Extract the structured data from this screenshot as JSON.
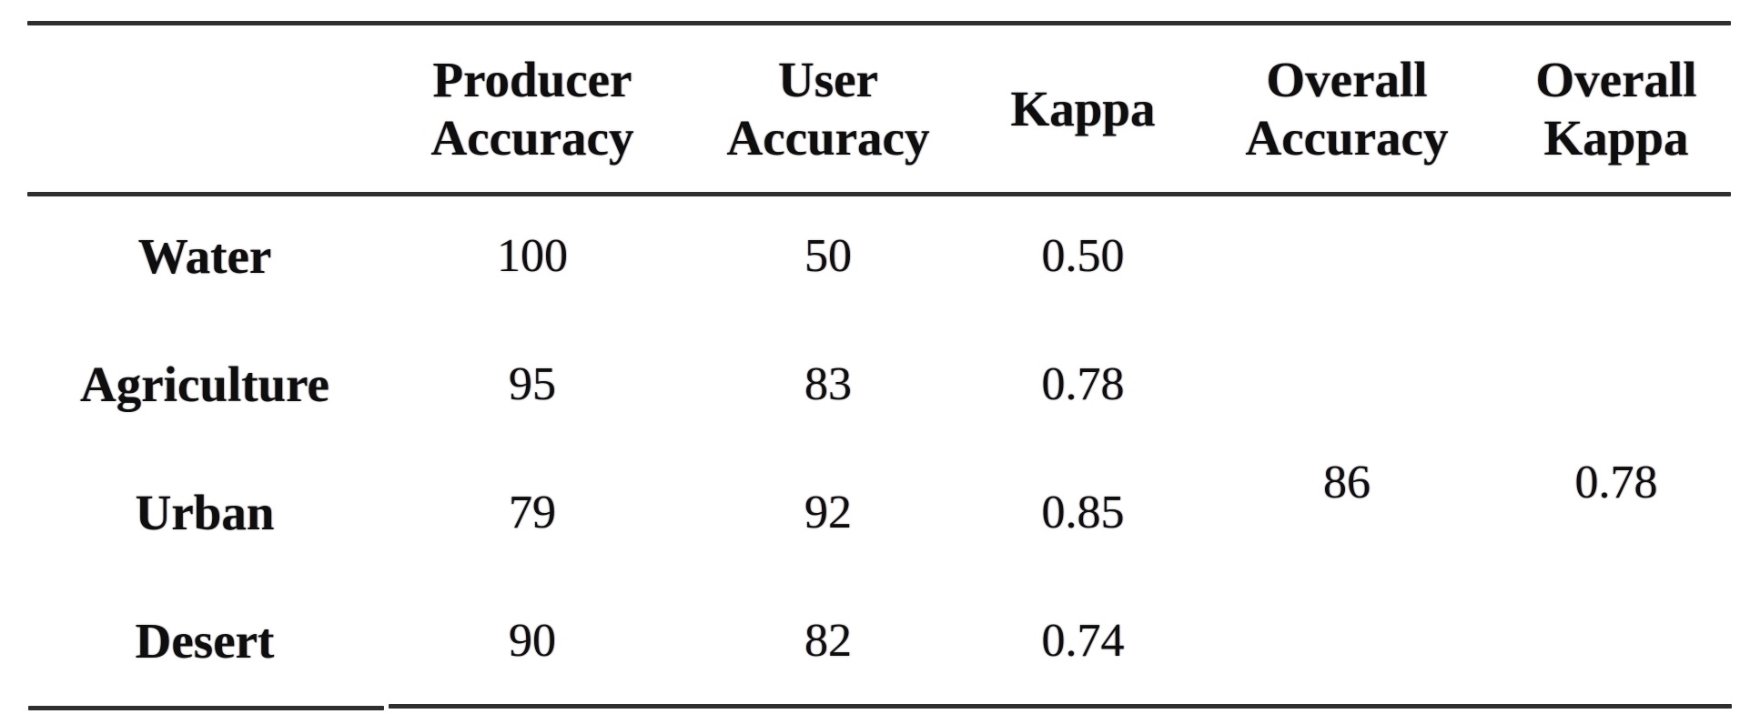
{
  "colors": {
    "background": "#ffffff",
    "text": "#0e0e0e",
    "rule": "#2f2f2f"
  },
  "table": {
    "column_headers": [
      {
        "label": ""
      },
      {
        "label": "Producer\nAccuracy"
      },
      {
        "label": "User\nAccuracy"
      },
      {
        "label": "Kappa"
      },
      {
        "label": "Overall\nAccuracy"
      },
      {
        "label": "Overall\nKappa"
      }
    ],
    "rows": [
      {
        "label": "Water",
        "producer_accuracy": "100",
        "user_accuracy": "50",
        "kappa": "0.50"
      },
      {
        "label": "Agriculture",
        "producer_accuracy": "95",
        "user_accuracy": "83",
        "kappa": "0.78"
      },
      {
        "label": "Urban",
        "producer_accuracy": "79",
        "user_accuracy": "92",
        "kappa": "0.85"
      },
      {
        "label": "Desert",
        "producer_accuracy": "90",
        "user_accuracy": "82",
        "kappa": "0.74"
      }
    ],
    "overall": {
      "accuracy": "86",
      "kappa": "0.78"
    }
  }
}
